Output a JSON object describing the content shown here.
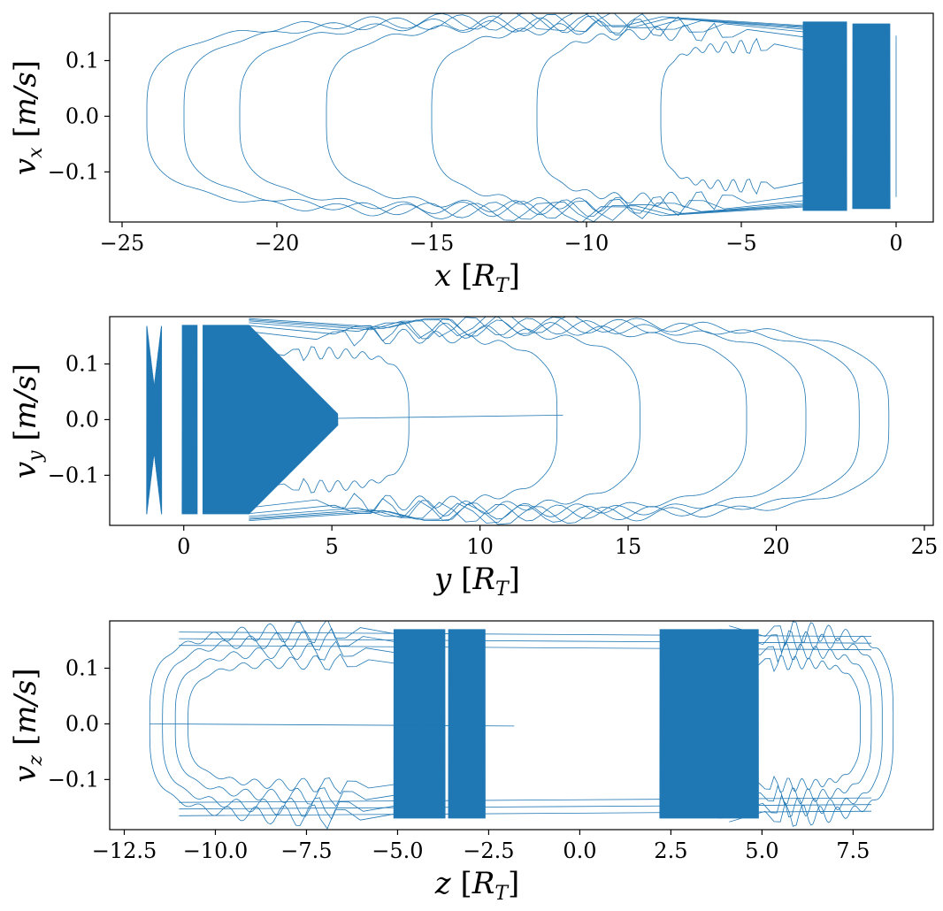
{
  "chart_data": [
    {
      "type": "line",
      "xlabel": "x [R_T]",
      "ylabel": "v_x [m/s]",
      "xlabel_parts": {
        "var": "x",
        "sub": "",
        "open": "[",
        "unit": "R",
        "unit_sub": "T",
        "close": "]"
      },
      "ylabel_parts": {
        "var": "v",
        "sub": "x",
        "open": "[",
        "unit": "m/s",
        "close": "]"
      },
      "xlim": [
        -25.4,
        1.2
      ],
      "ylim": [
        -0.19,
        0.185
      ],
      "xticks": [
        -25,
        -20,
        -15,
        -10,
        -5,
        0
      ],
      "xtick_labels": [
        "−25",
        "−20",
        "−15",
        "−10",
        "−5",
        "0"
      ],
      "yticks": [
        0.1,
        0.0,
        -0.1
      ],
      "ytick_labels": [
        "0.1",
        "0.0",
        "−0.1"
      ],
      "color": "#1f77b4",
      "grid": false,
      "trajectory": {
        "loops_x_min": [
          -24.2,
          -23.0,
          -21.2,
          -18.4,
          -15.0,
          -11.6,
          -7.6
        ],
        "loop_peak_v": [
          0.172,
          0.17,
          0.168,
          0.165,
          0.16,
          0.15,
          0.125
        ],
        "dense_band_x": [
          -3.0,
          0.0
        ],
        "dense_band_v": 0.17,
        "inner_tip_x": -2.9,
        "end_x": 0.0
      }
    },
    {
      "type": "line",
      "xlabel": "y [R_T]",
      "ylabel": "v_y [m/s]",
      "xlabel_parts": {
        "var": "y",
        "sub": "",
        "open": "[",
        "unit": "R",
        "unit_sub": "T",
        "close": "]"
      },
      "ylabel_parts": {
        "var": "v",
        "sub": "y",
        "open": "[",
        "unit": "m/s",
        "close": "]"
      },
      "xlim": [
        -2.5,
        25.3
      ],
      "ylim": [
        -0.19,
        0.185
      ],
      "xticks": [
        0,
        5,
        10,
        15,
        20,
        25
      ],
      "xtick_labels": [
        "0",
        "5",
        "10",
        "15",
        "20",
        "25"
      ],
      "yticks": [
        0.1,
        0.0,
        -0.1
      ],
      "ytick_labels": [
        "0.1",
        "0.0",
        "−0.1"
      ],
      "color": "#1f77b4",
      "grid": false,
      "trajectory": {
        "loops_x_max": [
          23.8,
          22.8,
          21.0,
          19.0,
          15.4,
          12.6,
          7.6
        ],
        "loop_peak_v": [
          0.172,
          0.17,
          0.168,
          0.165,
          0.16,
          0.15,
          0.12
        ],
        "dense_band_x": [
          -1.2,
          2.2
        ],
        "dense_band_v": 0.17,
        "inner_tip_x": 2.2,
        "end_x": 12.8
      }
    },
    {
      "type": "line",
      "xlabel": "z [R_T]",
      "ylabel": "v_z [m/s]",
      "xlabel_parts": {
        "var": "z",
        "sub": "",
        "open": "[",
        "unit": "R",
        "unit_sub": "T",
        "close": "]"
      },
      "ylabel_parts": {
        "var": "v",
        "sub": "z",
        "open": "[",
        "unit": "m/s",
        "close": "]"
      },
      "xlim": [
        -12.9,
        9.7
      ],
      "ylim": [
        -0.19,
        0.185
      ],
      "xticks": [
        -12.5,
        -10.0,
        -7.5,
        -5.0,
        -2.5,
        0.0,
        2.5,
        5.0,
        7.5
      ],
      "xtick_labels": [
        "−12.5",
        "−10.0",
        "−7.5",
        "−5.0",
        "−2.5",
        "0.0",
        "2.5",
        "5.0",
        "7.5"
      ],
      "yticks": [
        0.1,
        0.0,
        -0.1
      ],
      "ytick_labels": [
        "0.1",
        "0.0",
        "−0.1"
      ],
      "color": "#1f77b4",
      "grid": false,
      "trajectory": {
        "left_lobe_x": [
          -11.8,
          -4.8
        ],
        "right_lobe_x": [
          4.3,
          8.6
        ],
        "dense_bands_x": [
          [
            -5.1,
            -3.7
          ],
          [
            -3.6,
            -2.6
          ],
          [
            2.2,
            3.9
          ],
          [
            3.8,
            4.9
          ]
        ],
        "dense_band_v": 0.17,
        "end_x": -1.8
      }
    }
  ]
}
